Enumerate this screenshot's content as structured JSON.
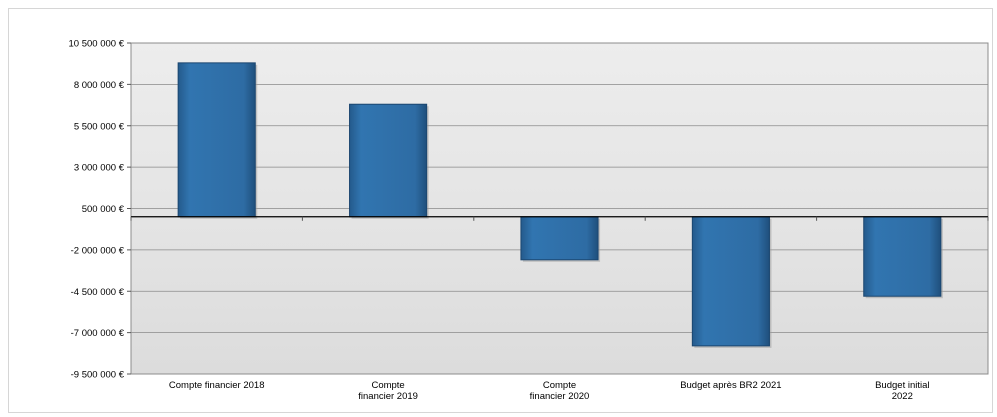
{
  "chart_data": {
    "type": "bar",
    "categories": [
      [
        "Compte financier 2018"
      ],
      [
        "Compte",
        "financier 2019"
      ],
      [
        "Compte",
        "financier 2020"
      ],
      [
        "Budget après BR2 2021"
      ],
      [
        "Budget initial",
        "2022"
      ]
    ],
    "values": [
      9300000,
      6800000,
      -2600000,
      -7800000,
      -4800000
    ],
    "ylim": [
      -9500000,
      10500000
    ],
    "yticks": [
      -9500000,
      -7000000,
      -4500000,
      -2000000,
      500000,
      3000000,
      5500000,
      8000000,
      10500000
    ],
    "ytick_labels": [
      "-9 500 000 €",
      "-7 000 000 €",
      "-4 500 000 €",
      "-2 000 000 €",
      "500 000 €",
      "3 000 000 €",
      "5 500 000 €",
      "8 000 000 €",
      "10 500 000 €"
    ],
    "baseline": 0,
    "grid": true,
    "colors": {
      "bar": "#2e6ca4",
      "bar_edge": "#1b4670",
      "plot_bg": "#e6e6e6"
    }
  }
}
